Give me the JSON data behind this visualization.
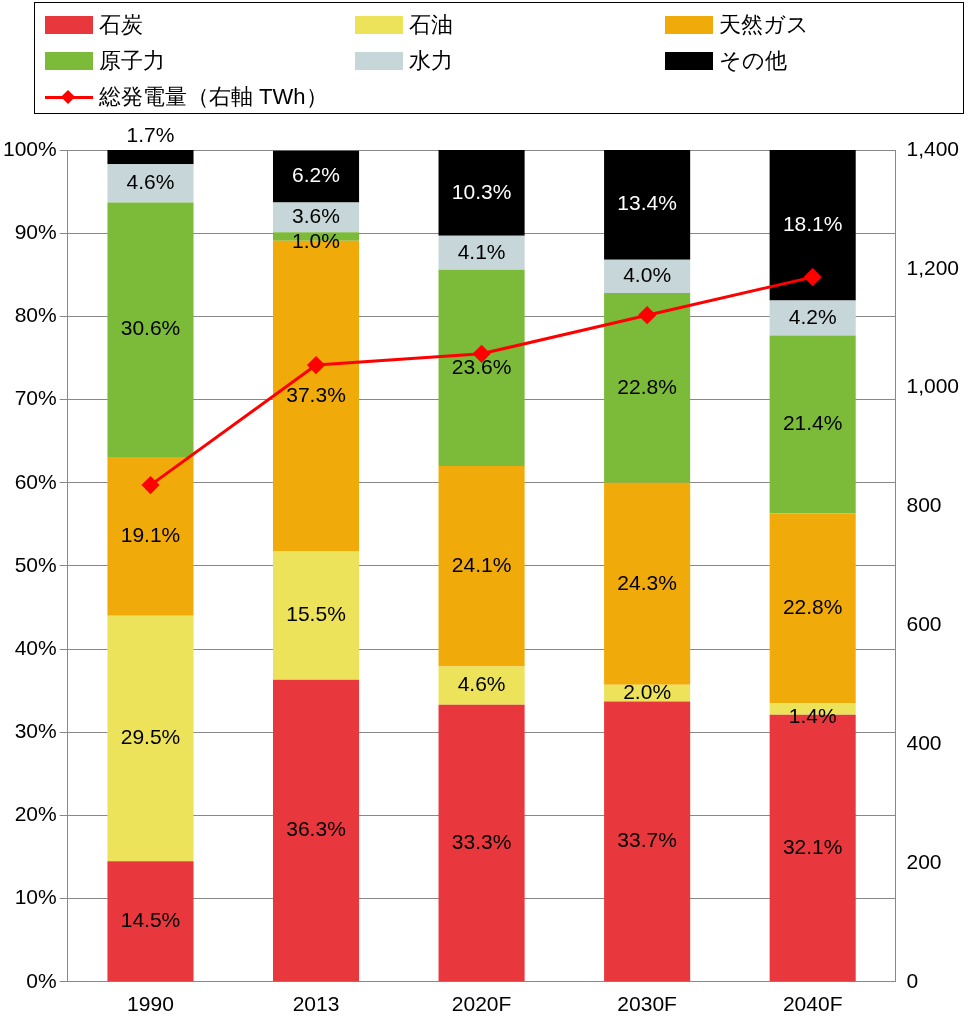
{
  "chart_data": {
    "type": "bar",
    "stacked": true,
    "categories": [
      "1990",
      "2013",
      "2020F",
      "2030F",
      "2040F"
    ],
    "series": [
      {
        "name": "石炭",
        "color": "#e8383d",
        "values": [
          14.5,
          36.3,
          33.3,
          33.7,
          32.1
        ],
        "value_labels": [
          "14.5%",
          "36.3%",
          "33.3%",
          "33.7%",
          "32.1%"
        ]
      },
      {
        "name": "石油",
        "color": "#ece35a",
        "values": [
          29.5,
          15.5,
          4.6,
          2.0,
          1.4
        ],
        "value_labels": [
          "29.5%",
          "15.5%",
          "4.6%",
          "2.0%",
          "1.4%"
        ]
      },
      {
        "name": "天然ガス",
        "color": "#f0ab0a",
        "values": [
          19.1,
          37.3,
          24.1,
          24.3,
          22.8
        ],
        "value_labels": [
          "19.1%",
          "37.3%",
          "24.1%",
          "24.3%",
          "22.8%"
        ]
      },
      {
        "name": "原子力",
        "color": "#7cbb3a",
        "values": [
          30.6,
          1.0,
          23.6,
          22.8,
          21.4
        ],
        "value_labels": [
          "30.6%",
          "1.0%",
          "23.6%",
          "22.8%",
          "21.4%"
        ]
      },
      {
        "name": "水力",
        "color": "#c6d6d9",
        "values": [
          4.6,
          3.6,
          4.1,
          4.0,
          4.2
        ],
        "value_labels": [
          "4.6%",
          "3.6%",
          "4.1%",
          "4.0%",
          "4.2%"
        ]
      },
      {
        "name": "その他",
        "color": "#000000",
        "values": [
          1.7,
          6.2,
          10.3,
          13.4,
          18.1
        ],
        "value_labels": [
          "1.7%",
          "6.2%",
          "10.3%",
          "13.4%",
          "18.1%"
        ]
      },
      {
        "name": "総発電量（右軸 TWh）",
        "type": "line",
        "axis": "y2",
        "color": "#ff0000",
        "marker": "diamond",
        "values": [
          836,
          1038,
          1057,
          1122,
          1186
        ]
      }
    ],
    "ylim": [
      0,
      100
    ],
    "yticks": [
      {
        "value": 0,
        "label": "0%"
      },
      {
        "value": 10,
        "label": "10%"
      },
      {
        "value": 20,
        "label": "20%"
      },
      {
        "value": 30,
        "label": "30%"
      },
      {
        "value": 40,
        "label": "40%"
      },
      {
        "value": 50,
        "label": "50%"
      },
      {
        "value": 60,
        "label": "60%"
      },
      {
        "value": 70,
        "label": "70%"
      },
      {
        "value": 80,
        "label": "80%"
      },
      {
        "value": 90,
        "label": "90%"
      },
      {
        "value": 100,
        "label": "100%"
      }
    ],
    "y2lim": [
      0,
      1400
    ],
    "y2ticks": [
      0,
      200,
      400,
      600,
      800,
      {
        "value": 1000,
        "label": "1,000"
      },
      {
        "value": 1200,
        "label": "1,200"
      },
      {
        "value": 1400,
        "label": "1,400"
      }
    ],
    "grid": "y",
    "legend": "top"
  }
}
